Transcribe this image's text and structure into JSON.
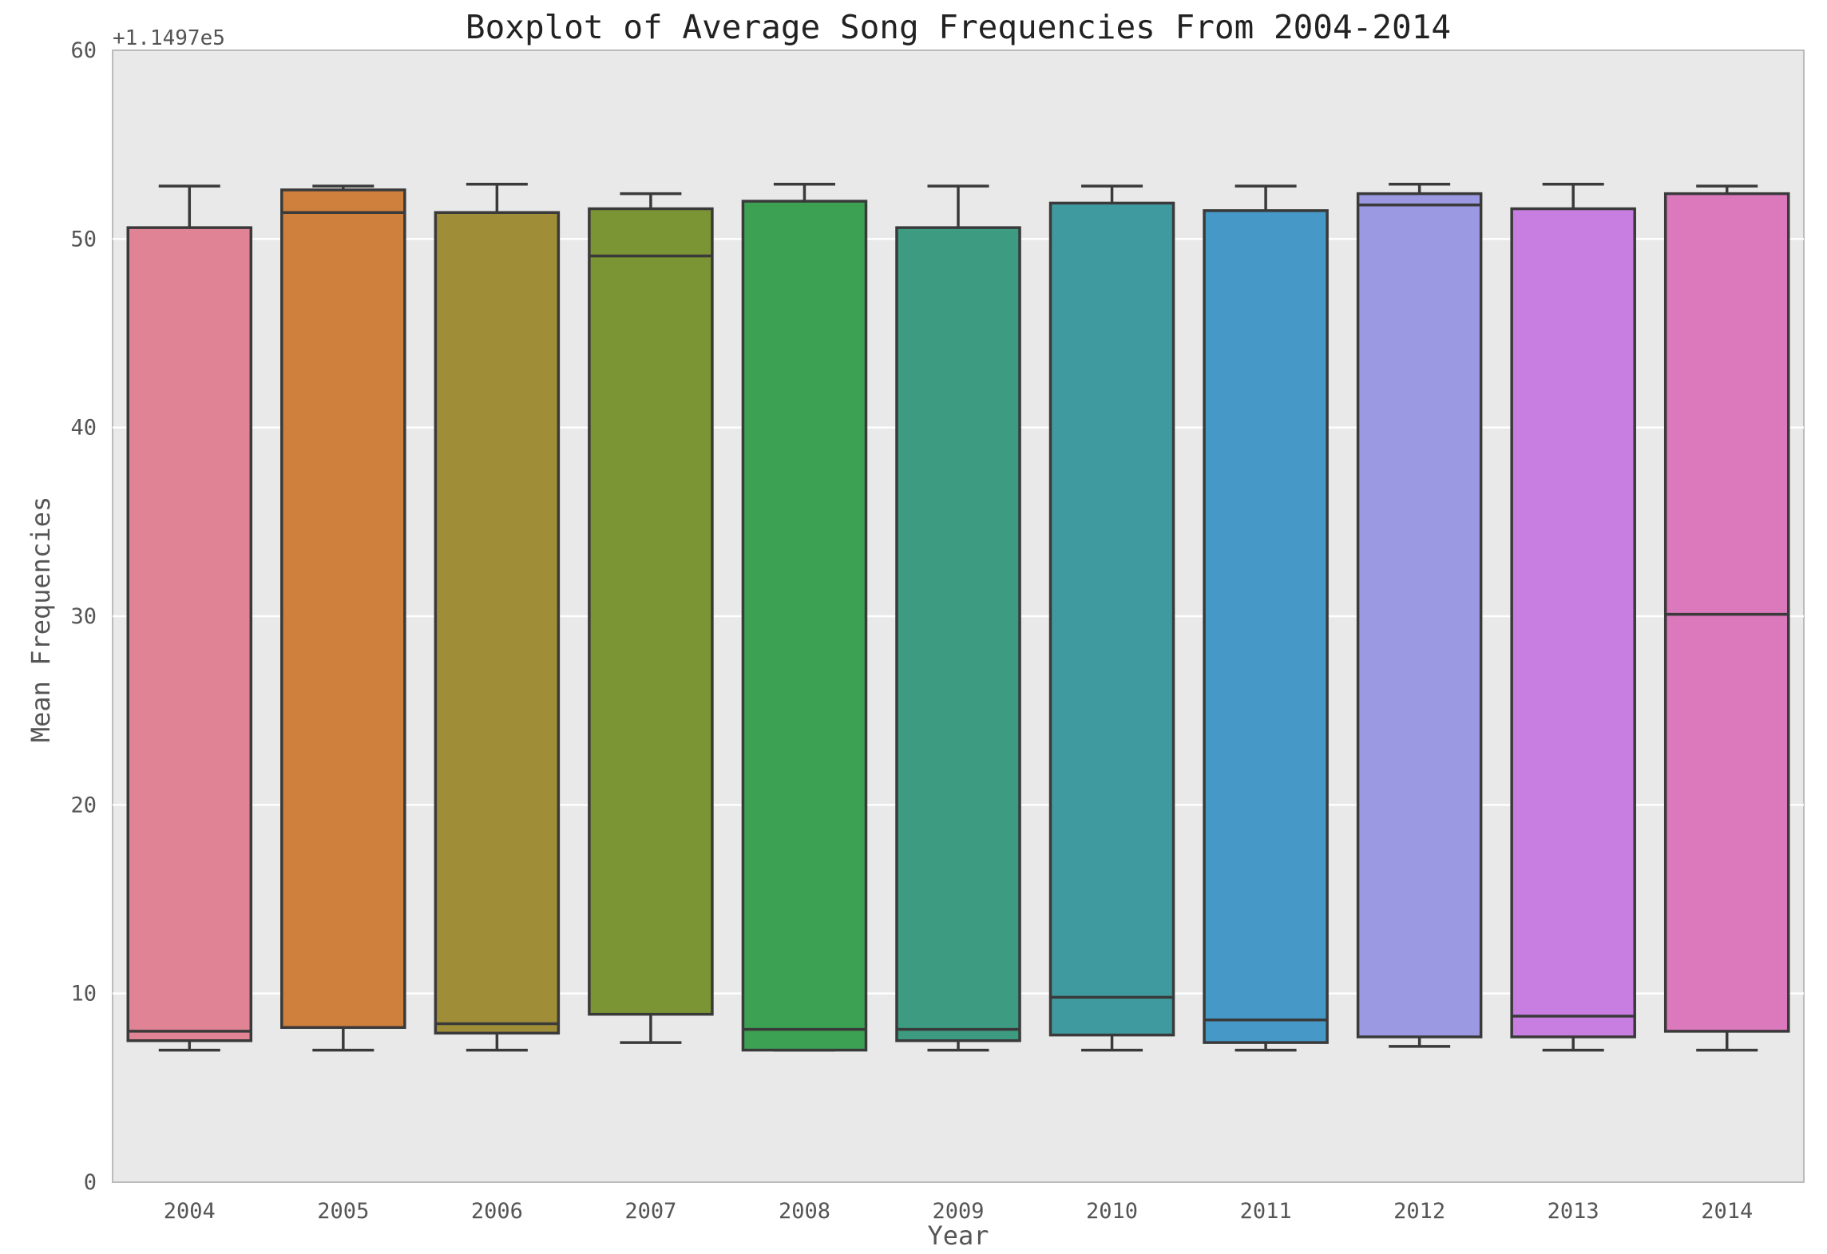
{
  "chart_data": {
    "type": "box",
    "title": "Boxplot of Average Song Frequencies From 2004-2014",
    "xlabel": "Year",
    "ylabel": "Mean Frequencies",
    "y_offset_label": "+1.1497e5",
    "ylim": [
      0,
      60
    ],
    "y_ticks": [
      "0",
      "10",
      "20",
      "30",
      "40",
      "50",
      "60"
    ],
    "grid": true,
    "categories": [
      "2004",
      "2005",
      "2006",
      "2007",
      "2008",
      "2009",
      "2010",
      "2011",
      "2012",
      "2013",
      "2014"
    ],
    "boxes": [
      {
        "whisker_low": 7.0,
        "q1": 7.5,
        "median": 8.0,
        "q3": 50.6,
        "whisker_high": 52.8
      },
      {
        "whisker_low": 7.0,
        "q1": 8.2,
        "median": 51.4,
        "q3": 52.6,
        "whisker_high": 52.8
      },
      {
        "whisker_low": 7.0,
        "q1": 7.9,
        "median": 8.4,
        "q3": 51.4,
        "whisker_high": 52.9
      },
      {
        "whisker_low": 7.4,
        "q1": 8.9,
        "median": 49.1,
        "q3": 51.6,
        "whisker_high": 52.4
      },
      {
        "whisker_low": 7.0,
        "q1": 7.0,
        "median": 8.1,
        "q3": 52.0,
        "whisker_high": 52.9
      },
      {
        "whisker_low": 7.0,
        "q1": 7.5,
        "median": 8.1,
        "q3": 50.6,
        "whisker_high": 52.8
      },
      {
        "whisker_low": 7.0,
        "q1": 7.8,
        "median": 9.8,
        "q3": 51.9,
        "whisker_high": 52.8
      },
      {
        "whisker_low": 7.0,
        "q1": 7.4,
        "median": 8.6,
        "q3": 51.5,
        "whisker_high": 52.8
      },
      {
        "whisker_low": 7.2,
        "q1": 7.7,
        "median": 51.8,
        "q3": 52.4,
        "whisker_high": 52.9
      },
      {
        "whisker_low": 7.0,
        "q1": 7.7,
        "median": 8.8,
        "q3": 51.6,
        "whisker_high": 52.9
      },
      {
        "whisker_low": 7.0,
        "q1": 8.0,
        "median": 30.1,
        "q3": 52.4,
        "whisker_high": 52.8
      }
    ],
    "colors": [
      "#e08394",
      "#cf803d",
      "#a08d37",
      "#7c9534",
      "#3da153",
      "#3d9b82",
      "#3f9a9f",
      "#4699c6",
      "#9b99e2",
      "#c87ee0",
      "#dc78bc"
    ],
    "plot_background": "#e9e9e9",
    "line_color": "#3a3a3a"
  }
}
